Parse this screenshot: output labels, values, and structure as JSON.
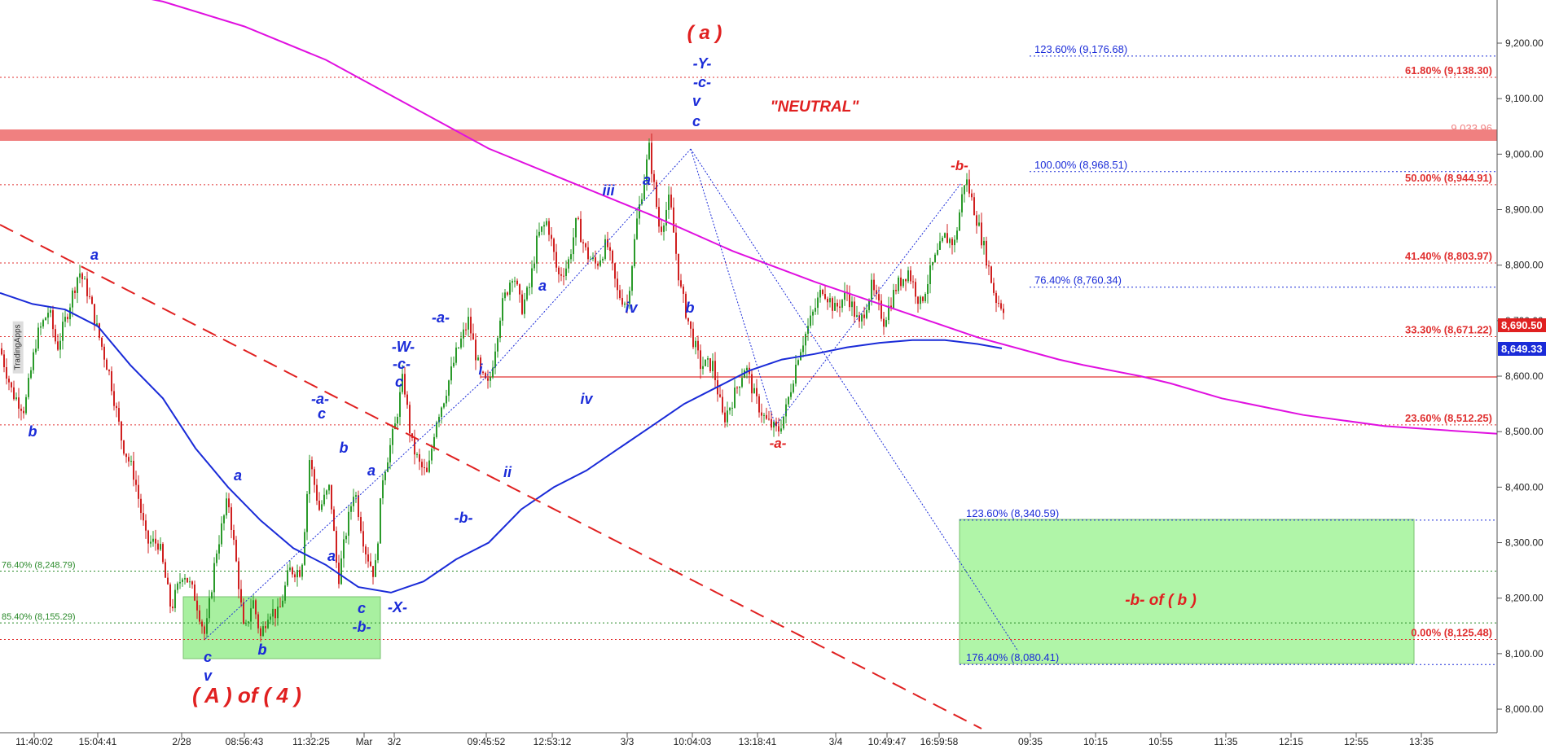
{
  "chart_data": {
    "type": "candlestick",
    "vendor": "TradingApps",
    "ylim": [
      7950,
      9330
    ],
    "y_ticks": [
      "8,000.00",
      "8,100.00",
      "8,200.00",
      "8,300.00",
      "8,400.00",
      "8,500.00",
      "8,600.00",
      "8,700.00",
      "8,800.00",
      "8,900.00",
      "9,000.00",
      "9,100.00",
      "9,200.00"
    ],
    "x_ticks": [
      "11:40:02",
      "15:04:41",
      "2/28",
      "08:56:43",
      "11:32:25",
      "Mar",
      "3/2",
      "09:45:52",
      "12:53:12",
      "3/3",
      "10:04:03",
      "13:18:41",
      "3/4",
      "10:49:47",
      "16:59:58",
      "09:35",
      "10:15",
      "10:55",
      "11:35",
      "12:15",
      "12:55",
      "13:35"
    ],
    "price_path": [
      [
        0,
        8650
      ],
      [
        15,
        8570
      ],
      [
        30,
        8540
      ],
      [
        45,
        8670
      ],
      [
        60,
        8720
      ],
      [
        70,
        8650
      ],
      [
        80,
        8700
      ],
      [
        97,
        8790
      ],
      [
        108,
        8750
      ],
      [
        120,
        8680
      ],
      [
        135,
        8600
      ],
      [
        150,
        8480
      ],
      [
        165,
        8420
      ],
      [
        180,
        8300
      ],
      [
        195,
        8300
      ],
      [
        210,
        8180
      ],
      [
        225,
        8250
      ],
      [
        240,
        8200
      ],
      [
        252,
        8130
      ],
      [
        265,
        8280
      ],
      [
        280,
        8380
      ],
      [
        292,
        8240
      ],
      [
        300,
        8130
      ],
      [
        310,
        8200
      ],
      [
        320,
        8130
      ],
      [
        330,
        8180
      ],
      [
        342,
        8170
      ],
      [
        355,
        8250
      ],
      [
        370,
        8250
      ],
      [
        380,
        8450
      ],
      [
        392,
        8360
      ],
      [
        405,
        8400
      ],
      [
        415,
        8230
      ],
      [
        425,
        8320
      ],
      [
        435,
        8400
      ],
      [
        448,
        8290
      ],
      [
        460,
        8240
      ],
      [
        470,
        8420
      ],
      [
        485,
        8510
      ],
      [
        495,
        8600
      ],
      [
        505,
        8480
      ],
      [
        515,
        8440
      ],
      [
        525,
        8420
      ],
      [
        535,
        8520
      ],
      [
        545,
        8560
      ],
      [
        560,
        8640
      ],
      [
        575,
        8700
      ],
      [
        590,
        8600
      ],
      [
        600,
        8580
      ],
      [
        615,
        8720
      ],
      [
        630,
        8790
      ],
      [
        640,
        8720
      ],
      [
        650,
        8760
      ],
      [
        660,
        8850
      ],
      [
        672,
        8880
      ],
      [
        685,
        8780
      ],
      [
        697,
        8800
      ],
      [
        708,
        8880
      ],
      [
        720,
        8820
      ],
      [
        732,
        8800
      ],
      [
        745,
        8840
      ],
      [
        758,
        8750
      ],
      [
        770,
        8730
      ],
      [
        782,
        8880
      ],
      [
        797,
        9010
      ],
      [
        810,
        8860
      ],
      [
        822,
        8920
      ],
      [
        835,
        8760
      ],
      [
        848,
        8680
      ],
      [
        860,
        8620
      ],
      [
        875,
        8620
      ],
      [
        888,
        8520
      ],
      [
        900,
        8560
      ],
      [
        915,
        8620
      ],
      [
        927,
        8560
      ],
      [
        940,
        8520
      ],
      [
        955,
        8500
      ],
      [
        965,
        8540
      ],
      [
        980,
        8640
      ],
      [
        995,
        8700
      ],
      [
        1010,
        8760
      ],
      [
        1025,
        8720
      ],
      [
        1040,
        8750
      ],
      [
        1055,
        8690
      ],
      [
        1070,
        8760
      ],
      [
        1085,
        8700
      ],
      [
        1100,
        8760
      ],
      [
        1115,
        8790
      ],
      [
        1130,
        8730
      ],
      [
        1145,
        8800
      ],
      [
        1160,
        8850
      ],
      [
        1172,
        8840
      ],
      [
        1185,
        8960
      ],
      [
        1198,
        8890
      ],
      [
        1210,
        8820
      ],
      [
        1222,
        8740
      ],
      [
        1235,
        8720
      ]
    ],
    "series": [
      {
        "name": "",
        "color": "#1a2bd8",
        "points": [
          [
            0,
            8750
          ],
          [
            40,
            8730
          ],
          [
            80,
            8720
          ],
          [
            120,
            8690
          ],
          [
            160,
            8620
          ],
          [
            200,
            8560
          ],
          [
            240,
            8470
          ],
          [
            280,
            8400
          ],
          [
            320,
            8340
          ],
          [
            360,
            8290
          ],
          [
            400,
            8260
          ],
          [
            440,
            8220
          ],
          [
            480,
            8210
          ],
          [
            520,
            8230
          ],
          [
            560,
            8270
          ],
          [
            600,
            8300
          ],
          [
            640,
            8360
          ],
          [
            680,
            8400
          ],
          [
            720,
            8430
          ],
          [
            760,
            8470
          ],
          [
            800,
            8510
          ],
          [
            840,
            8550
          ],
          [
            880,
            8580
          ],
          [
            920,
            8610
          ],
          [
            960,
            8630
          ],
          [
            1000,
            8640
          ],
          [
            1040,
            8652
          ],
          [
            1080,
            8660
          ],
          [
            1120,
            8665
          ],
          [
            1160,
            8665
          ],
          [
            1200,
            8658
          ],
          [
            1230,
            8650
          ]
        ]
      },
      {
        "name": "",
        "color": "#e010e0",
        "points": [
          [
            0,
            9330
          ],
          [
            100,
            9305
          ],
          [
            200,
            9275
          ],
          [
            300,
            9230
          ],
          [
            400,
            9170
          ],
          [
            500,
            9090
          ],
          [
            600,
            9010
          ],
          [
            700,
            8950
          ],
          [
            800,
            8890
          ],
          [
            900,
            8825
          ],
          [
            1000,
            8770
          ],
          [
            1100,
            8720
          ],
          [
            1200,
            8670
          ],
          [
            1300,
            8630
          ],
          [
            1330,
            8620
          ],
          [
            1400,
            8600
          ],
          [
            1437,
            8587
          ],
          [
            1500,
            8560
          ],
          [
            1600,
            8530
          ],
          [
            1700,
            8510
          ],
          [
            1800,
            8500
          ],
          [
            1900,
            8490
          ],
          [
            1970,
            8485
          ]
        ]
      }
    ]
  },
  "axis": {
    "last_price": "8,690.50",
    "ma_price": "8,649.33"
  },
  "levels": [
    {
      "text": "123.60% (9,176.68)",
      "value": 9176.68,
      "color": "#1a2bd8"
    },
    {
      "text": "61.80% (9,138.30)",
      "value": 9138.3,
      "color": "#e03030"
    },
    {
      "text": "9,033.96",
      "value": 9033.96,
      "color": "#f08080"
    },
    {
      "text": "100.00% (8,968.51)",
      "value": 8968.51,
      "color": "#1a2bd8"
    },
    {
      "text": "50.00% (8,944.91)",
      "value": 8944.91,
      "color": "#e03030"
    },
    {
      "text": "41.40% (8,803.97)",
      "value": 8803.97,
      "color": "#e03030"
    },
    {
      "text": "76.40% (8,760.34)",
      "value": 8760.34,
      "color": "#1a2bd8"
    },
    {
      "text": "33.30% (8,671.22)",
      "value": 8671.22,
      "color": "#e03030"
    },
    {
      "text": "23.60% (8,512.25)",
      "value": 8512.25,
      "color": "#e03030"
    },
    {
      "text": "123.60% (8,340.59)",
      "value": 8340.59,
      "color": "#1a2bd8"
    },
    {
      "text": "76.40% (8,248.79)",
      "value": 8248.79,
      "color": "#2a8a2a"
    },
    {
      "text": "85.40% (8,155.29)",
      "value": 8155.29,
      "color": "#2a8a2a"
    },
    {
      "text": "0.00% (8,125.48)",
      "value": 8125.48,
      "color": "#e03030"
    },
    {
      "text": "176.40% (8,080.41)",
      "value": 8080.41,
      "color": "#1a2bd8"
    }
  ],
  "annotations": {
    "red": [
      {
        "text": "( a )"
      },
      {
        "text": "\"NEUTRAL\""
      },
      {
        "text": "-b-"
      },
      {
        "text": "-a-"
      },
      {
        "text": "-b- of ( b )"
      },
      {
        "text": "( A ) of ( 4 )"
      }
    ],
    "blue": [
      {
        "text": "-Y-"
      },
      {
        "text": "-c-"
      },
      {
        "text": "v"
      },
      {
        "text": "c"
      },
      {
        "text": "iii"
      },
      {
        "text": "a"
      },
      {
        "text": "iv"
      },
      {
        "text": "b"
      },
      {
        "text": "a"
      },
      {
        "text": "iv"
      },
      {
        "text": "i"
      },
      {
        "text": "ii"
      },
      {
        "text": "-a-"
      },
      {
        "text": "-b-"
      },
      {
        "text": "-W-"
      },
      {
        "text": "-c-"
      },
      {
        "text": "c"
      },
      {
        "text": "-a-"
      },
      {
        "text": "c"
      },
      {
        "text": "b"
      },
      {
        "text": "a"
      },
      {
        "text": "a"
      },
      {
        "text": "a"
      },
      {
        "text": "b"
      },
      {
        "text": "a"
      },
      {
        "text": "b"
      },
      {
        "text": "c"
      },
      {
        "text": "-b-"
      },
      {
        "text": "-X-"
      },
      {
        "text": "c"
      },
      {
        "text": "v"
      },
      {
        "text": "b"
      }
    ]
  }
}
